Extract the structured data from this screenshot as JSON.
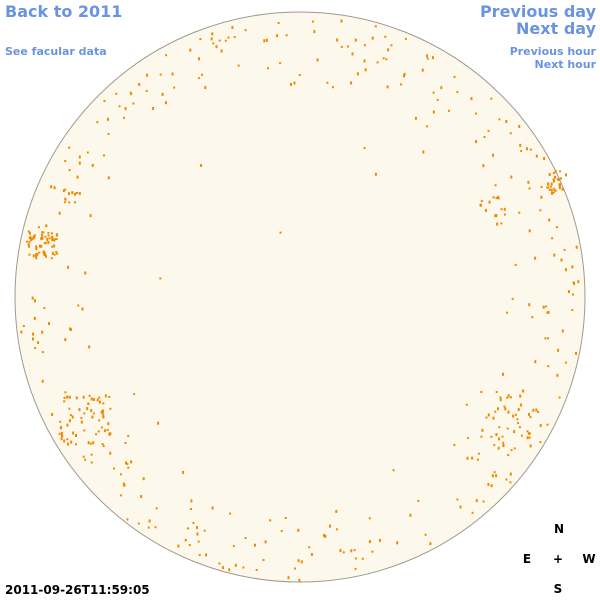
{
  "navigation": {
    "back": "Back to 2011",
    "previous_day": "Previous day",
    "next_day": "Next day",
    "facular": "See facular data",
    "previous_hour": "Previous hour",
    "next_hour": "Next hour"
  },
  "timestamp": "2011-09-26T11:59:05",
  "compass": {
    "north": "N",
    "east": "E",
    "center": "+",
    "west": "W",
    "south": "S"
  }
}
